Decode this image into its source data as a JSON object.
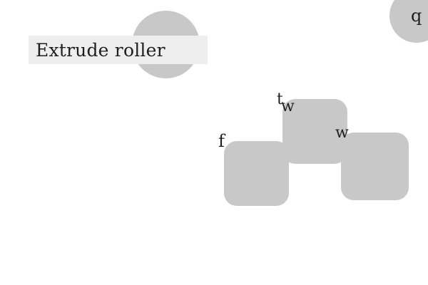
{
  "label_plate": {
    "text": "Extrude roller"
  },
  "corner_knob": {
    "text": "q"
  },
  "glyphs": {
    "t": "t",
    "w1": "w",
    "w2": "w",
    "f": "f"
  }
}
